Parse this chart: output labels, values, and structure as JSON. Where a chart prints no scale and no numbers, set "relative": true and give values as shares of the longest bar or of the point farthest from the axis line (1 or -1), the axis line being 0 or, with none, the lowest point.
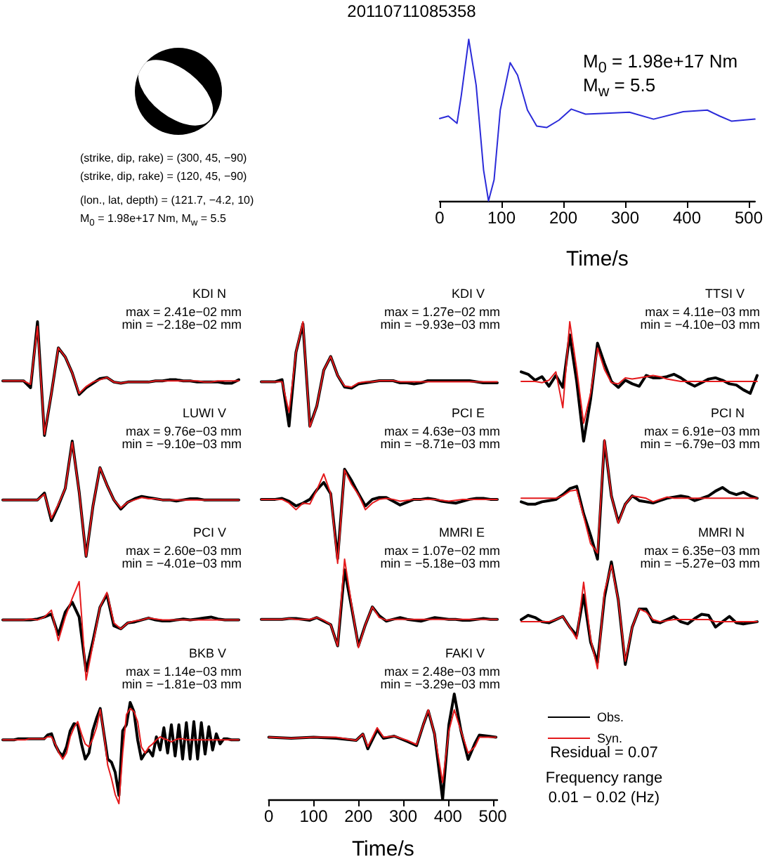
{
  "chart_data": [
    {
      "type": "other",
      "title": "20110711085358",
      "annotations": [
        "(strike, dip, rake) = (300, 45, −90)",
        "(strike, dip, rake) = (120, 45, −90)",
        "(lon., lat, depth) = (121.7, −4.2, 10)",
        "M$_{0}$ = 1.98e+17 Nm, M$_{w}$ = 5.5"
      ]
    },
    {
      "type": "line",
      "relative": true,
      "xlim": [
        0,
        510
      ],
      "xticks": [
        0,
        100,
        200,
        300,
        400,
        500
      ],
      "xlabel": "Time/s",
      "annotations": [
        "M$_{0}$ = 1.98e+17 Nm",
        "M$_{w}$ = 5.5"
      ],
      "grid": false,
      "series": [
        {
          "color": "#2b2bd9",
          "x": [
            0,
            14,
            28,
            35,
            47,
            59,
            71,
            79,
            88,
            98,
            114,
            126,
            142,
            157,
            173,
            193,
            213,
            236,
            276,
            307,
            346,
            394,
            433,
            453,
            472,
            510
          ],
          "values": [
            0.51,
            0.525,
            0.48,
            0.654,
            1,
            0.716,
            0.191,
            0,
            0.13,
            0.562,
            0.855,
            0.778,
            0.562,
            0.463,
            0.454,
            0.5,
            0.568,
            0.537,
            0.543,
            0.549,
            0.506,
            0.552,
            0.562,
            0.525,
            0.494,
            0.506
          ]
        }
      ]
    },
    {
      "type": "line",
      "relative": true,
      "title": "KDI N",
      "annotations": [
        "max = 2.41e−02 mm",
        "min = −2.18e−02 mm"
      ],
      "categories": [
        null,
        null,
        null,
        null,
        null,
        null,
        null,
        null,
        null,
        null,
        null,
        null,
        null,
        null,
        null,
        null,
        null,
        null,
        null,
        null,
        null,
        null,
        null,
        null,
        null,
        null,
        null,
        null,
        null,
        null,
        null,
        null,
        null,
        null,
        null
      ],
      "tick_labels": false,
      "grid": false,
      "series": [
        {
          "color": "#000000",
          "values": [
            0.48,
            0.48,
            0.48,
            0.48,
            0.42,
            1,
            0,
            0.37,
            0.77,
            0.69,
            0.55,
            0.36,
            0.42,
            0.46,
            0.5,
            0.51,
            0.47,
            0.46,
            0.47,
            0.47,
            0.47,
            0.47,
            0.48,
            0.48,
            0.49,
            0.49,
            0.48,
            0.48,
            0.47,
            0.47,
            0.47,
            0.47,
            0.46,
            0.46,
            0.49
          ]
        },
        {
          "color": "#e41a1c",
          "values": [
            0.48,
            0.48,
            0.48,
            0.48,
            0.45,
            0.96,
            0.01,
            0.37,
            0.77,
            0.69,
            0.55,
            0.37,
            0.43,
            0.47,
            0.49,
            0.51,
            0.47,
            0.46,
            0.47,
            0.47,
            0.47,
            0.47,
            0.48,
            0.48,
            0.48,
            0.48,
            0.48,
            0.48,
            0.48,
            0.47,
            0.47,
            0.48,
            0.48,
            0.48,
            0.48
          ]
        }
      ]
    },
    {
      "type": "line",
      "relative": true,
      "title": "KDI V",
      "annotations": [
        "max = 1.27e−02 mm",
        "min = −9.93e−03 mm"
      ],
      "categories": [
        null,
        null,
        null,
        null,
        null,
        null,
        null,
        null,
        null,
        null,
        null,
        null,
        null,
        null,
        null,
        null,
        null,
        null,
        null,
        null,
        null,
        null,
        null,
        null,
        null,
        null,
        null,
        null,
        null,
        null,
        null,
        null,
        null,
        null,
        null
      ],
      "tick_labels": false,
      "grid": false,
      "series": [
        {
          "color": "#000000",
          "values": [
            0.43,
            0.43,
            0.43,
            0.45,
            0.01,
            0.71,
            0.98,
            0.01,
            0.2,
            0.54,
            0.67,
            0.49,
            0.38,
            0.37,
            0.41,
            0.42,
            0.43,
            0.44,
            0.44,
            0.44,
            0.42,
            0.42,
            0.41,
            0.42,
            0.44,
            0.44,
            0.44,
            0.44,
            0.44,
            0.44,
            0.44,
            0.43,
            0.42,
            0.42,
            0.42
          ]
        },
        {
          "color": "#e41a1c",
          "values": [
            0.43,
            0.43,
            0.43,
            0.43,
            0.14,
            0.71,
            1,
            0,
            0.2,
            0.54,
            0.67,
            0.49,
            0.39,
            0.38,
            0.42,
            0.43,
            0.43,
            0.44,
            0.44,
            0.44,
            0.43,
            0.43,
            0.43,
            0.43,
            0.43,
            0.43,
            0.43,
            0.43,
            0.43,
            0.43,
            0.43,
            0.43,
            0.43,
            0.43,
            0.43
          ]
        }
      ]
    },
    {
      "type": "line",
      "relative": true,
      "title": "TTSI V",
      "annotations": [
        "max = 4.11e−03 mm",
        "min = −4.10e−03 mm"
      ],
      "categories": [
        null,
        null,
        null,
        null,
        null,
        null,
        null,
        null,
        null,
        null,
        null,
        null,
        null,
        null,
        null,
        null,
        null,
        null,
        null,
        null,
        null,
        null,
        null,
        null,
        null,
        null,
        null,
        null,
        null,
        null,
        null,
        null,
        null,
        null,
        null
      ],
      "tick_labels": false,
      "grid": false,
      "series": [
        {
          "color": "#000000",
          "values": [
            0.58,
            0.56,
            0.51,
            0.54,
            0.46,
            0.55,
            0.45,
            0.89,
            0.5,
            0,
            0.35,
            0.82,
            0.65,
            0.5,
            0.45,
            0.51,
            0.48,
            0.46,
            0.55,
            0.53,
            0.53,
            0.54,
            0.56,
            0.53,
            0.49,
            0.46,
            0.49,
            0.52,
            0.53,
            0.51,
            0.48,
            0.47,
            0.43,
            0.4,
            0.55
          ]
        },
        {
          "color": "#e41a1c",
          "values": [
            0.5,
            0.5,
            0.5,
            0.49,
            0.51,
            0.58,
            0.28,
            1,
            0.6,
            0.15,
            0.4,
            0.78,
            0.6,
            0.49,
            0.48,
            0.53,
            0.52,
            0.53,
            0.54,
            0.55,
            0.54,
            0.52,
            0.51,
            0.5,
            0.5,
            0.5,
            0.5,
            0.5,
            0.5,
            0.5,
            0.5,
            0.5,
            0.5,
            0.5,
            0.5
          ]
        }
      ]
    },
    {
      "type": "line",
      "relative": true,
      "title": "LUWI V",
      "annotations": [
        "max = 9.76e−03 mm",
        "min = −9.10e−03 mm"
      ],
      "categories": [
        null,
        null,
        null,
        null,
        null,
        null,
        null,
        null,
        null,
        null,
        null,
        null,
        null,
        null,
        null,
        null,
        null,
        null,
        null,
        null,
        null,
        null,
        null,
        null,
        null,
        null,
        null,
        null,
        null,
        null,
        null,
        null,
        null,
        null,
        null
      ],
      "tick_labels": false,
      "grid": false,
      "series": [
        {
          "color": "#000000",
          "values": [
            0.49,
            0.49,
            0.49,
            0.49,
            0.49,
            0.49,
            0.55,
            0.31,
            0.44,
            0.59,
            1,
            0.56,
            0,
            0.44,
            0.77,
            0.62,
            0.49,
            0.41,
            0.47,
            0.5,
            0.52,
            0.51,
            0.5,
            0.49,
            0.49,
            0.48,
            0.49,
            0.5,
            0.5,
            0.49,
            0.49,
            0.49,
            0.49,
            0.49,
            0.49
          ]
        },
        {
          "color": "#e41a1c",
          "values": [
            0.49,
            0.49,
            0.49,
            0.49,
            0.49,
            0.49,
            0.54,
            0.33,
            0.45,
            0.59,
            0.99,
            0.56,
            0,
            0.44,
            0.77,
            0.62,
            0.49,
            0.42,
            0.47,
            0.49,
            0.51,
            0.5,
            0.5,
            0.49,
            0.49,
            0.49,
            0.49,
            0.49,
            0.49,
            0.49,
            0.49,
            0.49,
            0.49,
            0.49,
            0.49
          ]
        }
      ]
    },
    {
      "type": "line",
      "relative": true,
      "title": "PCI E",
      "annotations": [
        "max = 4.63e−03 mm",
        "min = −8.71e−03 mm"
      ],
      "categories": [
        null,
        null,
        null,
        null,
        null,
        null,
        null,
        null,
        null,
        null,
        null,
        null,
        null,
        null,
        null,
        null,
        null,
        null,
        null,
        null,
        null,
        null,
        null,
        null,
        null,
        null,
        null,
        null,
        null,
        null,
        null,
        null,
        null,
        null,
        null
      ],
      "tick_labels": false,
      "grid": false,
      "series": [
        {
          "color": "#000000",
          "values": [
            0.68,
            0.68,
            0.68,
            0.69,
            0.66,
            0.61,
            0.64,
            0.68,
            0.78,
            0.86,
            0.74,
            0.05,
            1,
            0.88,
            0.74,
            0.61,
            0.68,
            0.7,
            0.7,
            0.66,
            0.62,
            0.65,
            0.68,
            0.68,
            0.69,
            0.68,
            0.66,
            0.65,
            0.64,
            0.66,
            0.68,
            0.69,
            0.69,
            0.68,
            0.68
          ]
        },
        {
          "color": "#e41a1c",
          "values": [
            0.68,
            0.68,
            0.68,
            0.68,
            0.64,
            0.57,
            0.64,
            0.63,
            0.78,
            0.95,
            0.74,
            0,
            0.99,
            0.84,
            0.73,
            0.57,
            0.64,
            0.68,
            0.69,
            0.68,
            0.66,
            0.67,
            0.68,
            0.68,
            0.68,
            0.68,
            0.67,
            0.66,
            0.67,
            0.68,
            0.68,
            0.68,
            0.68,
            0.68,
            0.68
          ]
        }
      ]
    },
    {
      "type": "line",
      "relative": true,
      "title": "PCI N",
      "annotations": [
        "max = 6.91e−03 mm",
        "min = −6.79e−03 mm"
      ],
      "categories": [
        null,
        null,
        null,
        null,
        null,
        null,
        null,
        null,
        null,
        null,
        null,
        null,
        null,
        null,
        null,
        null,
        null,
        null,
        null,
        null,
        null,
        null,
        null,
        null,
        null,
        null,
        null,
        null,
        null,
        null,
        null,
        null,
        null,
        null,
        null
      ],
      "tick_labels": false,
      "grid": false,
      "series": [
        {
          "color": "#000000",
          "values": [
            0.48,
            0.46,
            0.46,
            0.48,
            0.49,
            0.5,
            0.54,
            0.59,
            0.61,
            0.38,
            0.2,
            0,
            0.99,
            0.53,
            0.31,
            0.46,
            0.53,
            0.49,
            0.48,
            0.47,
            0.49,
            0.51,
            0.52,
            0.53,
            0.52,
            0.49,
            0.51,
            0.53,
            0.57,
            0.6,
            0.56,
            0.54,
            0.56,
            0.53,
            0.51
          ]
        },
        {
          "color": "#e41a1c",
          "values": [
            0.51,
            0.51,
            0.51,
            0.51,
            0.51,
            0.51,
            0.53,
            0.57,
            0.58,
            0.36,
            0.13,
            0.05,
            1,
            0.53,
            0.3,
            0.46,
            0.53,
            0.52,
            0.51,
            0.48,
            0.5,
            0.52,
            0.51,
            0.51,
            0.51,
            0.51,
            0.51,
            0.51,
            0.51,
            0.51,
            0.51,
            0.51,
            0.51,
            0.51,
            0.51
          ]
        }
      ]
    },
    {
      "type": "line",
      "relative": true,
      "title": "PCI V",
      "annotations": [
        "max = 2.60e−03 mm",
        "min = −4.01e−03 mm"
      ],
      "categories": [
        null,
        null,
        null,
        null,
        null,
        null,
        null,
        null,
        null,
        null,
        null,
        null,
        null,
        null,
        null,
        null,
        null,
        null,
        null,
        null,
        null,
        null,
        null,
        null,
        null,
        null,
        null,
        null,
        null,
        null,
        null,
        null,
        null,
        null,
        null
      ],
      "tick_labels": false,
      "grid": false,
      "series": [
        {
          "color": "#000000",
          "values": [
            0.61,
            0.61,
            0.61,
            0.61,
            0.61,
            0.62,
            0.64,
            0.67,
            0.46,
            0.69,
            0.79,
            0.64,
            0.09,
            0.4,
            0.74,
            0.87,
            0.55,
            0.52,
            0.58,
            0.59,
            0.61,
            0.63,
            0.61,
            0.6,
            0.6,
            0.61,
            0.62,
            0.61,
            0.62,
            0.63,
            0.64,
            0.62,
            0.61,
            0.61,
            0.61
          ]
        },
        {
          "color": "#e41a1c",
          "values": [
            0.61,
            0.61,
            0.61,
            0.61,
            0.62,
            0.61,
            0.64,
            0.71,
            0.4,
            0.64,
            0.83,
            1,
            0,
            0.37,
            0.74,
            0.89,
            0.58,
            0.52,
            0.58,
            0.6,
            0.61,
            0.63,
            0.62,
            0.61,
            0.61,
            0.61,
            0.61,
            0.61,
            0.61,
            0.61,
            0.61,
            0.61,
            0.61,
            0.61,
            0.61
          ]
        }
      ]
    },
    {
      "type": "line",
      "relative": true,
      "title": "MMRI E",
      "annotations": [
        "max = 1.07e−02 mm",
        "min = −5.18e−03 mm"
      ],
      "categories": [
        null,
        null,
        null,
        null,
        null,
        null,
        null,
        null,
        null,
        null,
        null,
        null,
        null,
        null,
        null,
        null,
        null,
        null,
        null,
        null,
        null,
        null,
        null,
        null,
        null,
        null,
        null,
        null,
        null,
        null,
        null,
        null,
        null,
        null,
        null
      ],
      "tick_labels": false,
      "grid": false,
      "series": [
        {
          "color": "#000000",
          "values": [
            0.32,
            0.32,
            0.32,
            0.32,
            0.33,
            0.33,
            0.32,
            0.31,
            0.34,
            0.3,
            0.26,
            0.02,
            0.88,
            0.46,
            0.02,
            0.26,
            0.46,
            0.36,
            0.3,
            0.32,
            0.34,
            0.32,
            0.31,
            0.3,
            0.32,
            0.34,
            0.33,
            0.32,
            0.32,
            0.31,
            0.31,
            0.32,
            0.33,
            0.32,
            0.32
          ]
        },
        {
          "color": "#e41a1c",
          "values": [
            0.32,
            0.32,
            0.32,
            0.32,
            0.33,
            0.32,
            0.32,
            0.32,
            0.34,
            0.31,
            0.26,
            0.02,
            1,
            0.49,
            0,
            0.26,
            0.46,
            0.34,
            0.31,
            0.32,
            0.32,
            0.32,
            0.32,
            0.32,
            0.32,
            0.32,
            0.32,
            0.32,
            0.32,
            0.32,
            0.32,
            0.32,
            0.32,
            0.32,
            0.32
          ]
        }
      ]
    },
    {
      "type": "line",
      "relative": true,
      "title": "MMRI N",
      "annotations": [
        "max = 6.35e−03 mm",
        "min = −5.27e−03 mm"
      ],
      "categories": [
        null,
        null,
        null,
        null,
        null,
        null,
        null,
        null,
        null,
        null,
        null,
        null,
        null,
        null,
        null,
        null,
        null,
        null,
        null,
        null,
        null,
        null,
        null,
        null,
        null,
        null,
        null,
        null,
        null,
        null,
        null,
        null,
        null,
        null,
        null
      ],
      "tick_labels": false,
      "grid": false,
      "series": [
        {
          "color": "#000000",
          "values": [
            0.46,
            0.5,
            0.48,
            0.44,
            0.43,
            0.46,
            0.49,
            0.39,
            0.31,
            0.69,
            0.25,
            0.06,
            0.67,
            1,
            0.64,
            0.04,
            0.39,
            0.56,
            0.56,
            0.44,
            0.43,
            0.46,
            0.49,
            0.44,
            0.42,
            0.47,
            0.51,
            0.5,
            0.39,
            0.44,
            0.49,
            0.43,
            0.42,
            0.43,
            0.44
          ]
        },
        {
          "color": "#e41a1c",
          "values": [
            0.44,
            0.44,
            0.44,
            0.44,
            0.44,
            0.46,
            0.49,
            0.39,
            0.28,
            0.81,
            0.28,
            0,
            0.72,
            0.97,
            0.64,
            0.07,
            0.39,
            0.56,
            0.53,
            0.46,
            0.44,
            0.45,
            0.46,
            0.46,
            0.46,
            0.46,
            0.46,
            0.46,
            0.44,
            0.44,
            0.44,
            0.44,
            0.44,
            0.44,
            0.44
          ]
        }
      ]
    },
    {
      "type": "line",
      "relative": true,
      "title": "BKB V",
      "annotations": [
        "max = 1.14e−03 mm",
        "min = −1.81e−03 mm"
      ],
      "categories": [
        null,
        null,
        null,
        null,
        null,
        null,
        null,
        null,
        null,
        null,
        null,
        null,
        null,
        null,
        null,
        null,
        null,
        null,
        null,
        null,
        null,
        null,
        null,
        null,
        null,
        null,
        null,
        null,
        null,
        null,
        null,
        null,
        null,
        null,
        null,
        null,
        null,
        null,
        null,
        null,
        null,
        null,
        null,
        null,
        null,
        null,
        null,
        null,
        null,
        null,
        null,
        null,
        null,
        null,
        null,
        null,
        null,
        null,
        null,
        null,
        null,
        null,
        null,
        null
      ],
      "tick_labels": false,
      "grid": false,
      "series": [
        {
          "color": "#000000",
          "values": [
            0.63,
            0.63,
            0.63,
            0.63,
            0.64,
            0.64,
            0.64,
            0.64,
            0.64,
            0.64,
            0.64,
            0.64,
            0.68,
            0.69,
            0.58,
            0.51,
            0.47,
            0.56,
            0.72,
            0.79,
            0.78,
            0.59,
            0.44,
            0.5,
            0.72,
            0.84,
            0.94,
            0.69,
            0.44,
            0.41,
            0.31,
            0.08,
            0.72,
            0.78,
            1,
            0.91,
            0.63,
            0.44,
            0.5,
            0.53,
            0.47,
            0.66,
            0.53,
            0.75,
            0.5,
            0.78,
            0.47,
            0.78,
            0.44,
            0.8,
            0.44,
            0.81,
            0.44,
            0.8,
            0.49,
            0.76,
            0.53,
            0.69,
            0.59,
            0.64,
            0.64,
            0.63,
            0.63,
            0.63
          ]
        },
        {
          "color": "#e41a1c",
          "values": [
            0.63,
            0.63,
            0.63,
            0.63,
            0.63,
            0.63,
            0.63,
            0.64,
            0.64,
            0.64,
            0.64,
            0.64,
            0.66,
            0.66,
            0.59,
            0.5,
            0.44,
            0.5,
            0.66,
            0.75,
            0.81,
            0.69,
            0.59,
            0.56,
            0.64,
            0.75,
            0.93,
            0.69,
            0.38,
            0.25,
            0.09,
            0,
            0.5,
            0.88,
            0.94,
            0.91,
            0.81,
            0.56,
            0.5,
            0.56,
            0.59,
            0.63,
            0.66,
            0.64,
            0.63,
            0.61,
            0.63,
            0.64,
            0.64,
            0.63,
            0.63,
            0.63,
            0.63,
            0.63,
            0.63,
            0.63,
            0.63,
            0.63,
            0.63,
            0.63,
            0.63,
            0.63,
            0.63,
            0.63
          ]
        }
      ]
    },
    {
      "type": "line",
      "relative": true,
      "title": "FAKI V",
      "annotations": [
        "max = 2.48e−03 mm",
        "min = −3.29e−03 mm",
        "Residual = 0.07",
        "Frequency range",
        "0.01 − 0.02 (Hz)"
      ],
      "xlim": [
        0,
        510
      ],
      "xticks": [
        0,
        100,
        200,
        300,
        400,
        500
      ],
      "xlabel": "Time/s",
      "tick_labels": "x",
      "grid": false,
      "legend": "right",
      "series": [
        {
          "name": "Obs.",
          "color": "#000000",
          "x": [
            0,
            50,
            100,
            150,
            195,
            210,
            221,
            242,
            256,
            280,
            309,
            330,
            345,
            356,
            370,
            388,
            402,
            414,
            429,
            445,
            460,
            470,
            490,
            507
          ],
          "values": [
            0.59,
            0.58,
            0.59,
            0.58,
            0.56,
            0.62,
            0.48,
            0.66,
            0.58,
            0.6,
            0.55,
            0.51,
            0.71,
            0.84,
            0.62,
            0,
            0.71,
            1,
            0.65,
            0.38,
            0.53,
            0.61,
            0.6,
            0.59
          ]
        },
        {
          "name": "Syn.",
          "color": "#e41a1c",
          "x": [
            0,
            50,
            100,
            150,
            195,
            210,
            221,
            242,
            256,
            280,
            309,
            330,
            345,
            356,
            370,
            388,
            402,
            414,
            429,
            445,
            460,
            470,
            490,
            507
          ],
          "values": [
            0.59,
            0.58,
            0.59,
            0.59,
            0.56,
            0.62,
            0.5,
            0.68,
            0.59,
            0.6,
            0.56,
            0.52,
            0.71,
            0.85,
            0.62,
            0.16,
            0.65,
            0.85,
            0.65,
            0.44,
            0.5,
            0.59,
            0.59,
            0.59
          ]
        }
      ]
    }
  ]
}
